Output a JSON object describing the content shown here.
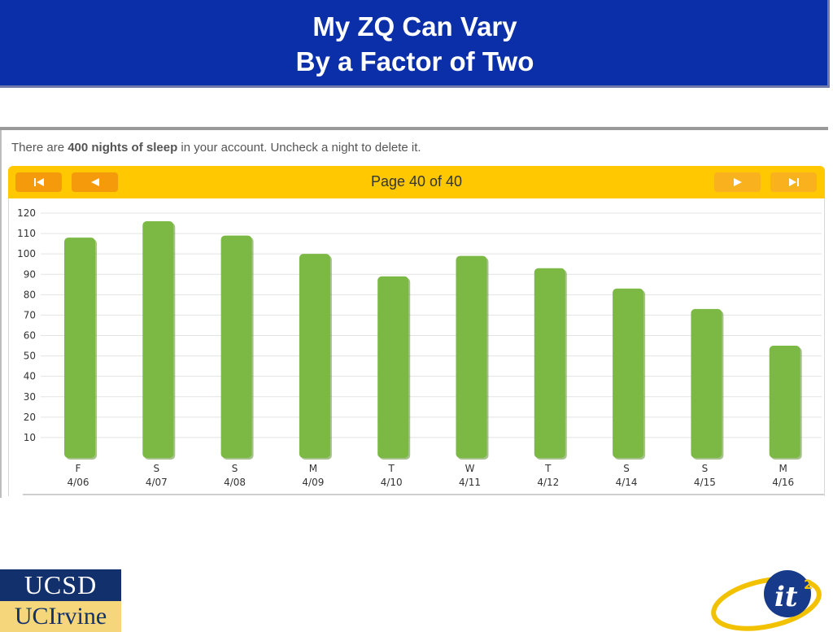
{
  "header": {
    "title_line1": "My ZQ Can Vary",
    "title_line2": "By a Factor of Two"
  },
  "account": {
    "notice_prefix": "There are ",
    "notice_bold": "400 nights of sleep",
    "notice_suffix": " in your account. Uncheck a night to delete it."
  },
  "pager": {
    "label": "Page 40 of 40",
    "first_icon": "first-page-icon",
    "prev_icon": "prev-page-icon",
    "next_icon": "next-page-icon",
    "last_icon": "last-page-icon"
  },
  "colors": {
    "header_bg": "#0b2fa8",
    "pager_bg": "#ffc800",
    "button_active": "#f59a0a",
    "button_disabled": "#f9b21d",
    "bar_green": "#7cb944"
  },
  "chart_data": {
    "type": "bar",
    "days": [
      "F",
      "S",
      "S",
      "M",
      "T",
      "W",
      "T",
      "S",
      "S",
      "M"
    ],
    "categories": [
      "4/06",
      "4/07",
      "4/08",
      "4/09",
      "4/10",
      "4/11",
      "4/12",
      "4/14",
      "4/15",
      "4/16"
    ],
    "values": [
      108,
      116,
      109,
      100,
      89,
      99,
      93,
      83,
      73,
      55
    ],
    "yticks": [
      10,
      20,
      30,
      40,
      50,
      60,
      70,
      80,
      90,
      100,
      110,
      120
    ],
    "ylim": [
      0,
      120
    ],
    "grid": true
  },
  "logos": {
    "ucsd": "UCSD",
    "uci": "UCIrvine",
    "it2": "it",
    "it2_sup": "2"
  }
}
